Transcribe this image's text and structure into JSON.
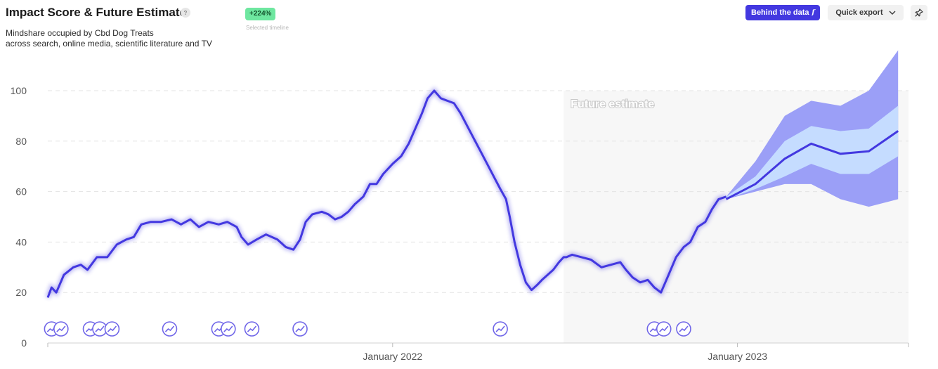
{
  "header": {
    "title": "Impact Score & Future Estimate",
    "help_glyph": "?",
    "subtitle_line1": "Mindshare occupied by Cbd Dog Treats",
    "subtitle_line2": "across search, online media, scientific literature and TV",
    "badge_value": "+224%",
    "badge_label": "Selected timeline"
  },
  "toolbar": {
    "behind_label": "Behind the data",
    "behind_icon_glyph": "f",
    "export_label": "Quick export",
    "export_icon": "chevron-down-icon",
    "pin_icon": "pin-icon"
  },
  "colors": {
    "line": "#4338e0",
    "band_outer": "#9b9ff7",
    "band_inner": "#c5dcff",
    "future_bg": "#f7f7f7",
    "event_marker": "#7066e8"
  },
  "chart_data": {
    "type": "line",
    "title": "",
    "xlabel": "",
    "ylabel": "",
    "ylim": [
      0,
      100
    ],
    "yticks": [
      0,
      20,
      40,
      60,
      80,
      100
    ],
    "x_ticks": [
      {
        "label": "January 2022",
        "date": "2022-01-01"
      },
      {
        "label": "January 2023",
        "date": "2023-01-01"
      }
    ],
    "x_range": [
      "2021-01-01",
      "2023-07-01"
    ],
    "grid": true,
    "future_label": "Future estimate",
    "future_start": "2022-07-01",
    "history": [
      [
        "2021-01-01",
        18
      ],
      [
        "2021-01-05",
        22
      ],
      [
        "2021-01-10",
        20
      ],
      [
        "2021-01-18",
        27
      ],
      [
        "2021-01-28",
        30
      ],
      [
        "2021-02-05",
        31
      ],
      [
        "2021-02-12",
        29
      ],
      [
        "2021-02-22",
        34
      ],
      [
        "2021-03-05",
        34
      ],
      [
        "2021-03-15",
        39
      ],
      [
        "2021-03-25",
        41
      ],
      [
        "2021-04-02",
        42
      ],
      [
        "2021-04-10",
        47
      ],
      [
        "2021-04-20",
        48
      ],
      [
        "2021-05-01",
        48
      ],
      [
        "2021-05-12",
        49
      ],
      [
        "2021-05-22",
        47
      ],
      [
        "2021-06-01",
        49
      ],
      [
        "2021-06-10",
        46
      ],
      [
        "2021-06-20",
        48
      ],
      [
        "2021-07-01",
        47
      ],
      [
        "2021-07-10",
        48
      ],
      [
        "2021-07-20",
        46
      ],
      [
        "2021-07-25",
        42
      ],
      [
        "2021-08-01",
        39
      ],
      [
        "2021-08-10",
        41
      ],
      [
        "2021-08-20",
        43
      ],
      [
        "2021-09-01",
        41
      ],
      [
        "2021-09-10",
        38
      ],
      [
        "2021-09-18",
        37
      ],
      [
        "2021-09-25",
        41
      ],
      [
        "2021-10-01",
        48
      ],
      [
        "2021-10-08",
        51
      ],
      [
        "2021-10-18",
        52
      ],
      [
        "2021-10-25",
        51
      ],
      [
        "2021-11-01",
        49
      ],
      [
        "2021-11-08",
        50
      ],
      [
        "2021-11-15",
        52
      ],
      [
        "2021-11-22",
        55
      ],
      [
        "2021-12-01",
        58
      ],
      [
        "2021-12-08",
        63
      ],
      [
        "2021-12-15",
        63
      ],
      [
        "2021-12-22",
        67
      ],
      [
        "2022-01-01",
        71
      ],
      [
        "2022-01-10",
        74
      ],
      [
        "2022-01-18",
        79
      ],
      [
        "2022-01-25",
        85
      ],
      [
        "2022-02-01",
        91
      ],
      [
        "2022-02-07",
        97
      ],
      [
        "2022-02-14",
        100
      ],
      [
        "2022-02-21",
        97
      ],
      [
        "2022-02-28",
        96
      ],
      [
        "2022-03-07",
        95
      ],
      [
        "2022-03-14",
        91
      ],
      [
        "2022-03-21",
        86
      ],
      [
        "2022-03-28",
        81
      ],
      [
        "2022-04-04",
        76
      ],
      [
        "2022-04-11",
        71
      ],
      [
        "2022-04-18",
        66
      ],
      [
        "2022-04-25",
        61
      ],
      [
        "2022-05-01",
        57
      ],
      [
        "2022-05-05",
        50
      ],
      [
        "2022-05-10",
        40
      ],
      [
        "2022-05-16",
        31
      ],
      [
        "2022-05-22",
        24
      ],
      [
        "2022-05-28",
        21
      ],
      [
        "2022-06-03",
        23
      ],
      [
        "2022-06-08",
        25
      ],
      [
        "2022-06-14",
        27
      ],
      [
        "2022-06-20",
        29
      ],
      [
        "2022-06-26",
        32
      ],
      [
        "2022-07-01",
        34
      ],
      [
        "2022-07-04",
        34
      ]
    ],
    "history_note": "",
    "history_post": [
      [
        "2022-07-10",
        35
      ],
      [
        "2022-07-20",
        34
      ],
      [
        "2022-07-30",
        33
      ],
      [
        "2022-08-10",
        30
      ],
      [
        "2022-08-20",
        31
      ],
      [
        "2022-08-30",
        32
      ],
      [
        "2022-09-05",
        29
      ],
      [
        "2022-09-12",
        26
      ],
      [
        "2022-09-20",
        24
      ],
      [
        "2022-09-28",
        25
      ],
      [
        "2022-10-05",
        22
      ],
      [
        "2022-10-12",
        20
      ],
      [
        "2022-10-20",
        27
      ],
      [
        "2022-10-28",
        34
      ],
      [
        "2022-11-05",
        38
      ],
      [
        "2022-11-12",
        40
      ],
      [
        "2022-11-20",
        46
      ],
      [
        "2022-11-28",
        48
      ],
      [
        "2022-12-05",
        53
      ],
      [
        "2022-12-12",
        57
      ],
      [
        "2022-12-20",
        58
      ]
    ],
    "forecast": [
      {
        "date": "2022-12-20",
        "mid": 57,
        "inner_hi": 58,
        "inner_lo": 57,
        "outer_hi": 58,
        "outer_lo": 57
      },
      {
        "date": "2023-01-20",
        "mid": 63,
        "inner_hi": 66,
        "inner_lo": 61,
        "outer_hi": 72,
        "outer_lo": 60
      },
      {
        "date": "2023-02-20",
        "mid": 73,
        "inner_hi": 80,
        "inner_lo": 66,
        "outer_hi": 90,
        "outer_lo": 63
      },
      {
        "date": "2023-03-20",
        "mid": 79,
        "inner_hi": 86,
        "inner_lo": 71,
        "outer_hi": 96,
        "outer_lo": 63
      },
      {
        "date": "2023-04-20",
        "mid": 75,
        "inner_hi": 84,
        "inner_lo": 67,
        "outer_hi": 94,
        "outer_lo": 57
      },
      {
        "date": "2023-05-20",
        "mid": 76,
        "inner_hi": 85,
        "inner_lo": 67,
        "outer_hi": 100,
        "outer_lo": 54
      },
      {
        "date": "2023-06-20",
        "mid": 84,
        "inner_hi": 94,
        "inner_lo": 74,
        "outer_hi": 116,
        "outer_lo": 57
      }
    ],
    "event_markers": [
      "2021-01-05",
      "2021-01-15",
      "2021-02-15",
      "2021-02-25",
      "2021-03-10",
      "2021-05-10",
      "2021-07-01",
      "2021-07-11",
      "2021-08-05",
      "2021-09-25",
      "2022-04-25",
      "2022-10-05",
      "2022-10-15",
      "2022-11-05"
    ]
  }
}
